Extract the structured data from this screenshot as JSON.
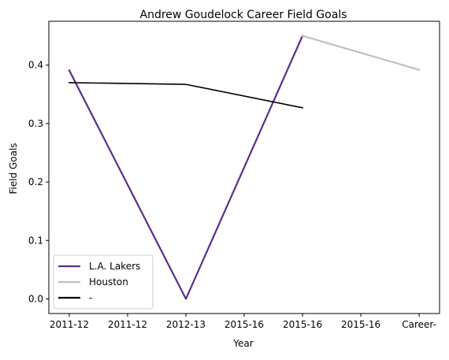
{
  "chart_data": {
    "type": "line",
    "title": "Andrew Goudelock Career Field Goals",
    "xlabel": "Year",
    "ylabel": "Field Goals",
    "x_tick_labels": [
      "2011-12",
      "2011-12",
      "2012-13",
      "2015-16",
      "2015-16",
      "2015-16",
      "Career-"
    ],
    "y_ticks": [
      "0.0",
      "0.1",
      "0.2",
      "0.3",
      "0.4"
    ],
    "ylim": [
      -0.025,
      0.475
    ],
    "xlim": [
      -0.35,
      6.35
    ],
    "grid": false,
    "legend_position": "lower-left",
    "series": [
      {
        "name": "L.A. Lakers",
        "color": "#5a2d8c",
        "points": [
          [
            0,
            0.391
          ],
          [
            2,
            0.0
          ],
          [
            4,
            0.45
          ]
        ]
      },
      {
        "name": "Houston",
        "color": "#bfbfbf",
        "points": [
          [
            4,
            0.45
          ],
          [
            6,
            0.392
          ]
        ]
      },
      {
        "name": "-",
        "color": "#000000",
        "points": [
          [
            0,
            0.37
          ],
          [
            2,
            0.367
          ],
          [
            4,
            0.327
          ]
        ]
      }
    ]
  }
}
